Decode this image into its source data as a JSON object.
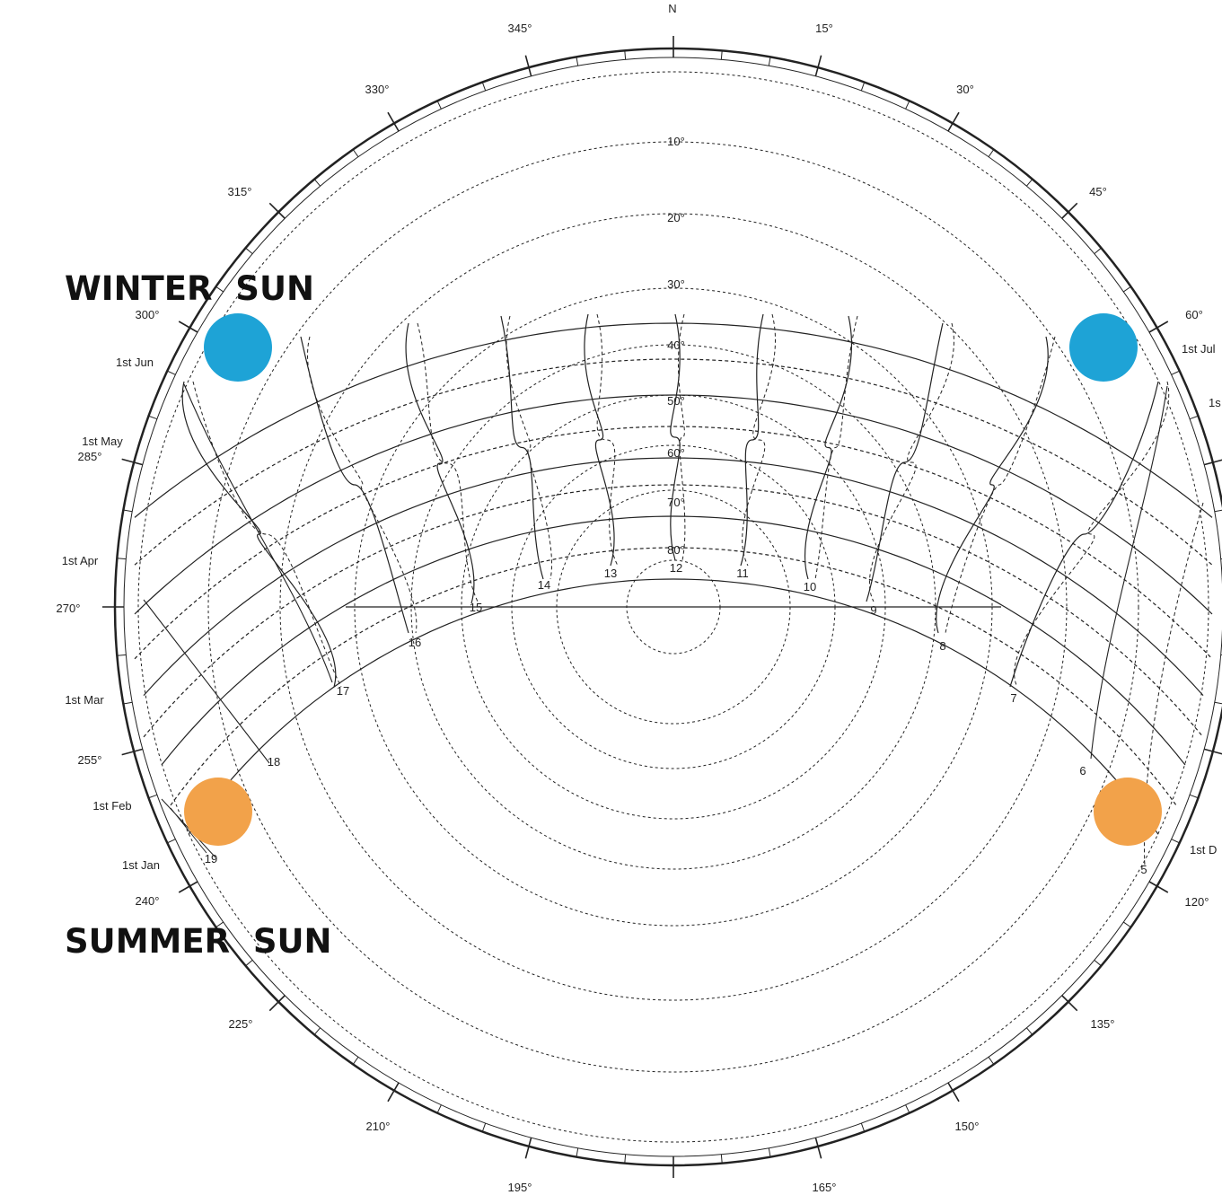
{
  "north_label": "N",
  "azimuth_labels": [
    "15°",
    "30°",
    "45°",
    "60°",
    "120°",
    "135°",
    "150°",
    "165°",
    "195°",
    "210°",
    "225°",
    "240°",
    "255°",
    "270°",
    "285°",
    "300°",
    "315°",
    "330°",
    "345°"
  ],
  "altitude_labels": [
    "10°",
    "20°",
    "30°",
    "40°",
    "50°",
    "60°",
    "70°",
    "80°"
  ],
  "hour_labels": [
    "5",
    "6",
    "7",
    "8",
    "9",
    "10",
    "11",
    "12",
    "13",
    "14",
    "15",
    "16",
    "17",
    "18",
    "19"
  ],
  "date_labels_left": [
    "1st Jun",
    "1st May",
    "1st Apr",
    "1st Mar",
    "1st Feb",
    "1st Jan"
  ],
  "date_labels_right": [
    "1st Jul",
    "1s",
    "1st D"
  ],
  "winter_sun_label": "WINTER  SUN",
  "summer_sun_label": "SUMMER  SUN",
  "colors": {
    "winter_sun": "#1ea3d6",
    "summer_sun": "#f2a24a",
    "ink": "#222222"
  }
}
